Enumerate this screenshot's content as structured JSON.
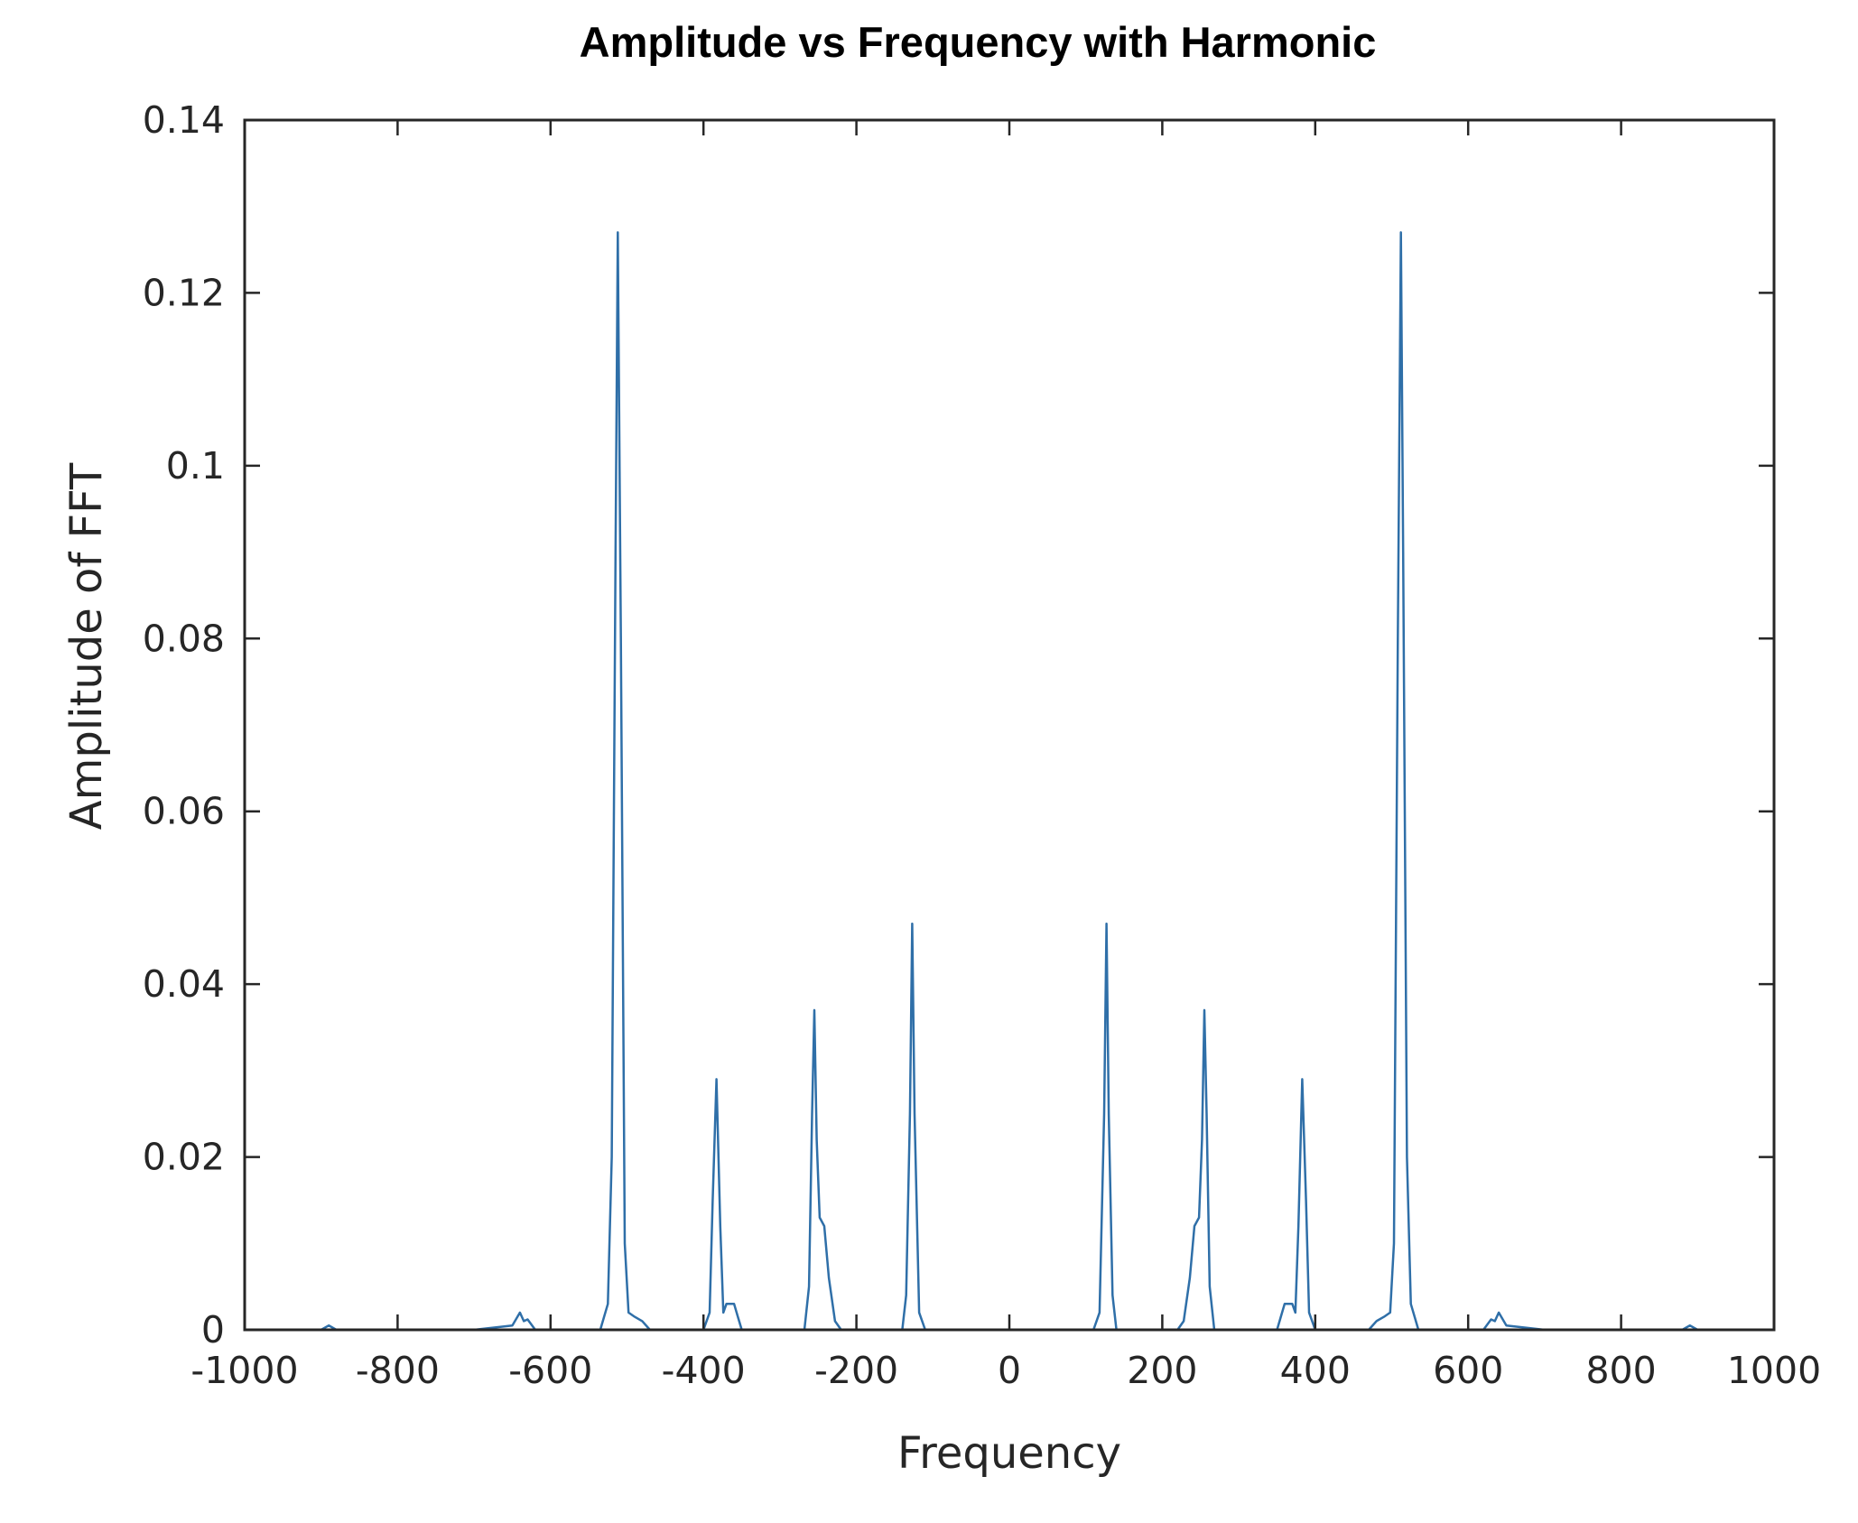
{
  "chart_data": {
    "type": "line",
    "title": "Amplitude vs Frequency with Harmonic",
    "xlabel": "Frequency",
    "ylabel": "Amplitude  of FFT",
    "xlim": [
      -1000,
      1000
    ],
    "ylim": [
      0,
      0.14
    ],
    "xticks": [
      -1000,
      -800,
      -600,
      -400,
      -200,
      0,
      200,
      400,
      600,
      800,
      1000
    ],
    "xtick_labels": [
      "-1000",
      "-800",
      "-600",
      "-400",
      "-200",
      "0",
      "200",
      "400",
      "600",
      "800",
      "1000"
    ],
    "yticks": [
      0,
      0.02,
      0.04,
      0.06,
      0.08,
      0.1,
      0.12,
      0.14
    ],
    "ytick_labels": [
      "0",
      "0.02",
      "0.04",
      "0.06",
      "0.08",
      "0.1",
      "0.12",
      "0.14"
    ],
    "grid": false,
    "legend": false,
    "series": [
      {
        "color": "#2f6fa8",
        "x": [
          -1000,
          -900,
          -890,
          -880,
          -800,
          -700,
          -650,
          -640,
          -635,
          -630,
          -620,
          -600,
          -535,
          -525,
          -520,
          -515,
          -512,
          -508,
          -503,
          -498,
          -490,
          -480,
          -470,
          -400,
          -392,
          -388,
          -383,
          -378,
          -374,
          -370,
          -365,
          -360,
          -355,
          -350,
          -300,
          -268,
          -262,
          -258,
          -255,
          -252,
          -248,
          -242,
          -236,
          -228,
          -220,
          -140,
          -135,
          -130,
          -127,
          -124,
          -118,
          -110,
          -100,
          0,
          100,
          110,
          118,
          124,
          127,
          130,
          135,
          140,
          220,
          228,
          236,
          242,
          248,
          252,
          255,
          258,
          262,
          268,
          300,
          350,
          355,
          360,
          365,
          370,
          374,
          378,
          383,
          388,
          392,
          400,
          470,
          480,
          490,
          498,
          503,
          508,
          512,
          515,
          520,
          525,
          535,
          600,
          620,
          630,
          635,
          640,
          650,
          700,
          800,
          880,
          890,
          900,
          1000
        ],
        "y": [
          0,
          0,
          0.0005,
          0,
          0,
          0,
          0.0005,
          0.002,
          0.001,
          0.0012,
          0,
          0,
          0,
          0.003,
          0.02,
          0.09,
          0.127,
          0.08,
          0.01,
          0.002,
          0.0015,
          0.001,
          0,
          0,
          0.002,
          0.015,
          0.029,
          0.012,
          0.002,
          0.003,
          0.003,
          0.003,
          0.0015,
          0,
          0,
          0,
          0.005,
          0.025,
          0.037,
          0.022,
          0.013,
          0.012,
          0.006,
          0.001,
          0,
          0,
          0.004,
          0.025,
          0.047,
          0.025,
          0.002,
          0,
          0,
          0,
          0,
          0,
          0.002,
          0.025,
          0.047,
          0.025,
          0.004,
          0,
          0,
          0.001,
          0.006,
          0.012,
          0.013,
          0.022,
          0.037,
          0.025,
          0.005,
          0,
          0,
          0,
          0.0015,
          0.003,
          0.003,
          0.003,
          0.002,
          0.012,
          0.029,
          0.015,
          0.002,
          0,
          0,
          0.001,
          0.0015,
          0.002,
          0.01,
          0.08,
          0.127,
          0.09,
          0.02,
          0.003,
          0,
          0,
          0,
          0.0012,
          0.001,
          0.002,
          0.0005,
          0,
          0,
          0,
          0.0005,
          0,
          0
        ]
      }
    ]
  }
}
